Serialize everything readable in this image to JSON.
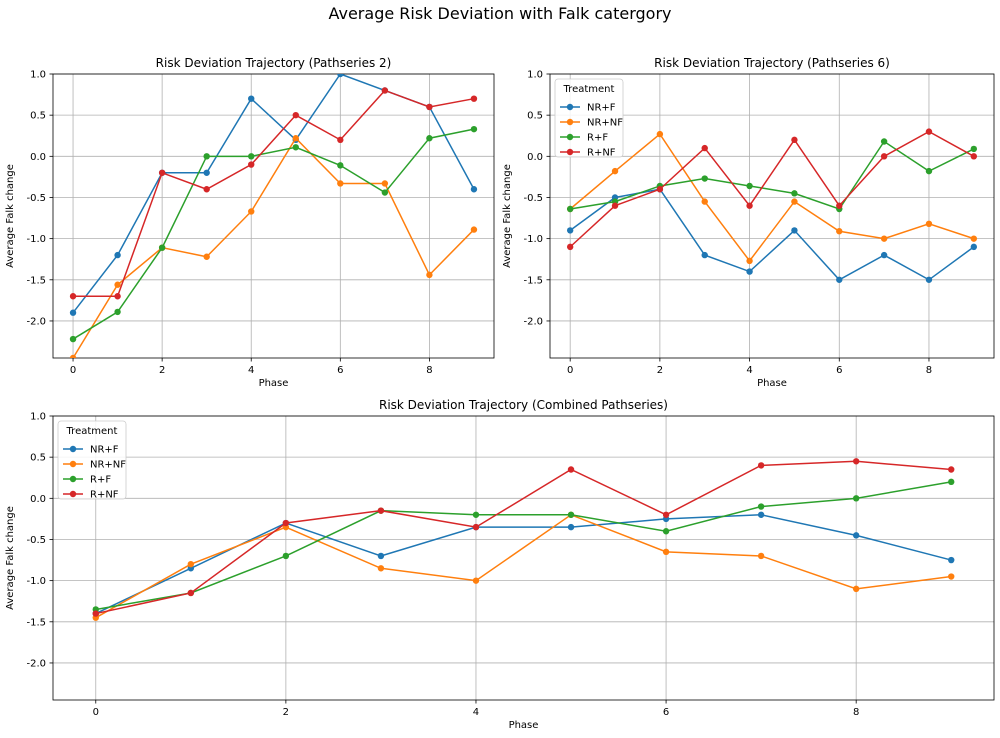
{
  "figure": {
    "title": "Average Risk Deviation with Falk catergory"
  },
  "colors": {
    "NR+F": "#1f77b4",
    "NR+NF": "#ff7f0e",
    "R+F": "#2ca02c",
    "R+NF": "#d62728"
  },
  "chart_data": [
    {
      "type": "line",
      "title": "Risk Deviation Trajectory (Pathseries 2)",
      "xlabel": "Phase",
      "ylabel": "Average Falk change",
      "xlim": [
        -0.45,
        9.45
      ],
      "ylim": [
        -2.45,
        1.0
      ],
      "xticks": [
        0,
        2,
        4,
        6,
        8
      ],
      "yticks": [
        -2.0,
        -1.5,
        -1.0,
        -0.5,
        0.0,
        0.5,
        1.0
      ],
      "grid": true,
      "legend": null,
      "x": [
        0,
        1,
        2,
        3,
        4,
        5,
        6,
        7,
        8,
        9
      ],
      "series": [
        {
          "name": "NR+F",
          "values": [
            -1.9,
            -1.2,
            -0.2,
            -0.2,
            0.7,
            0.2,
            1.0,
            0.8,
            0.6,
            -0.4
          ]
        },
        {
          "name": "NR+NF",
          "values": [
            -2.45,
            -1.56,
            -1.11,
            -1.22,
            -0.67,
            0.22,
            -0.33,
            -0.33,
            -1.44,
            -0.89
          ]
        },
        {
          "name": "R+F",
          "values": [
            -2.22,
            -1.89,
            -1.11,
            0.0,
            0.0,
            0.11,
            -0.11,
            -0.44,
            0.22,
            0.33
          ]
        },
        {
          "name": "R+NF",
          "values": [
            -1.7,
            -1.7,
            -0.2,
            -0.4,
            -0.1,
            0.5,
            0.2,
            0.8,
            0.6,
            0.7
          ]
        }
      ]
    },
    {
      "type": "line",
      "title": "Risk Deviation Trajectory (Pathseries 6)",
      "xlabel": "Phase",
      "ylabel": "Average Falk change",
      "xlim": [
        -0.45,
        9.45
      ],
      "ylim": [
        -2.45,
        1.0
      ],
      "xticks": [
        0,
        2,
        4,
        6,
        8
      ],
      "yticks": [
        -2.0,
        -1.5,
        -1.0,
        -0.5,
        0.0,
        0.5,
        1.0
      ],
      "grid": true,
      "legend": {
        "title": "Treatment",
        "position": "top-left"
      },
      "x": [
        0,
        1,
        2,
        3,
        4,
        5,
        6,
        7,
        8,
        9
      ],
      "series": [
        {
          "name": "NR+F",
          "values": [
            -0.9,
            -0.5,
            -0.4,
            -1.2,
            -1.4,
            -0.9,
            -1.5,
            -1.2,
            -1.5,
            -1.1
          ]
        },
        {
          "name": "NR+NF",
          "values": [
            -0.64,
            -0.18,
            0.27,
            -0.55,
            -1.27,
            -0.55,
            -0.91,
            -1.0,
            -0.82,
            -1.0
          ]
        },
        {
          "name": "R+F",
          "values": [
            -0.64,
            -0.55,
            -0.36,
            -0.27,
            -0.36,
            -0.45,
            -0.64,
            0.18,
            -0.18,
            0.09
          ]
        },
        {
          "name": "R+NF",
          "values": [
            -1.1,
            -0.6,
            -0.4,
            0.1,
            -0.6,
            0.2,
            -0.6,
            0.0,
            0.3,
            0.0
          ]
        }
      ]
    },
    {
      "type": "line",
      "title": "Risk Deviation Trajectory (Combined Pathseries)",
      "xlabel": "Phase",
      "ylabel": "Average Falk change",
      "xlim": [
        -0.45,
        9.45
      ],
      "ylim": [
        -2.45,
        1.0
      ],
      "xticks": [
        0,
        2,
        4,
        6,
        8
      ],
      "yticks": [
        -2.0,
        -1.5,
        -1.0,
        -0.5,
        0.0,
        0.5,
        1.0
      ],
      "grid": true,
      "legend": {
        "title": "Treatment",
        "position": "top-left"
      },
      "x": [
        0,
        1,
        2,
        3,
        4,
        5,
        6,
        7,
        8,
        9
      ],
      "series": [
        {
          "name": "NR+F",
          "values": [
            -1.4,
            -0.85,
            -0.3,
            -0.7,
            -0.35,
            -0.35,
            -0.25,
            -0.2,
            -0.45,
            -0.75
          ]
        },
        {
          "name": "NR+NF",
          "values": [
            -1.45,
            -0.8,
            -0.35,
            -0.85,
            -1.0,
            -0.2,
            -0.65,
            -0.7,
            -1.1,
            -0.95
          ]
        },
        {
          "name": "R+F",
          "values": [
            -1.35,
            -1.15,
            -0.7,
            -0.15,
            -0.2,
            -0.2,
            -0.4,
            -0.1,
            0.0,
            0.2
          ]
        },
        {
          "name": "R+NF",
          "values": [
            -1.4,
            -1.15,
            -0.3,
            -0.15,
            -0.35,
            0.35,
            -0.2,
            0.4,
            0.45,
            0.35
          ]
        }
      ]
    }
  ]
}
